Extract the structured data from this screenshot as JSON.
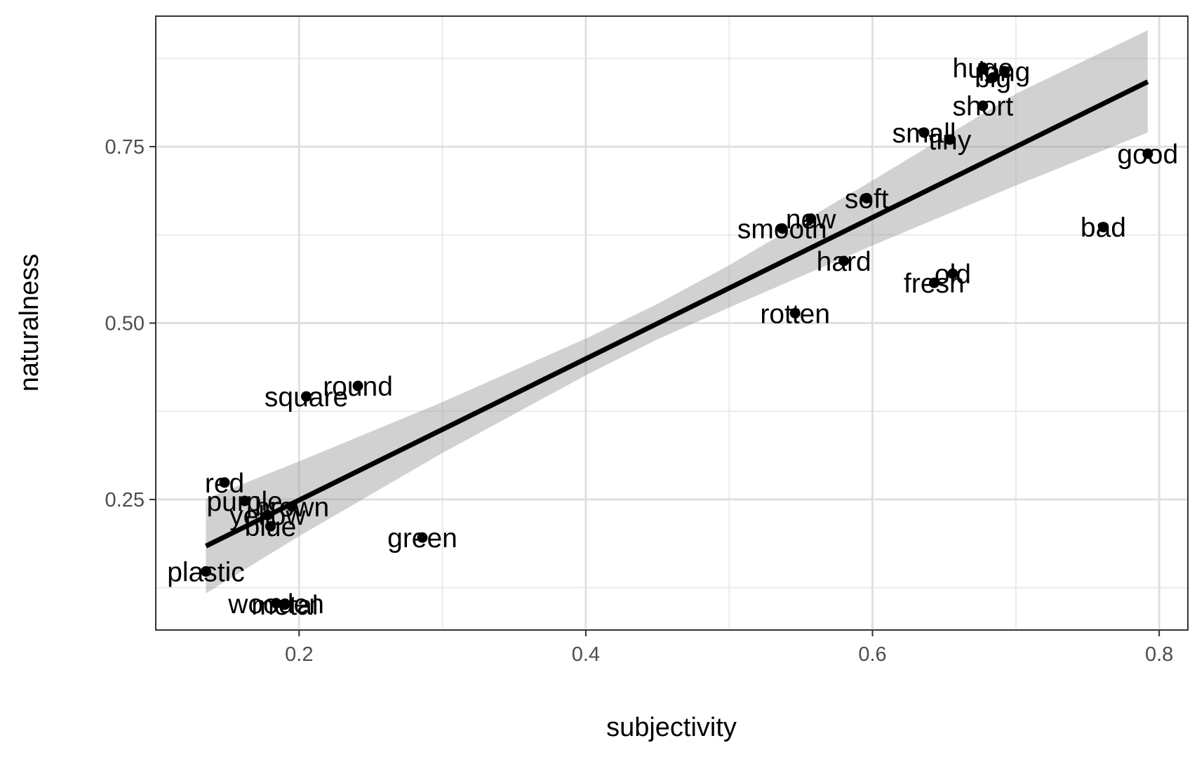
{
  "chart_data": {
    "type": "scatter",
    "title": "",
    "xlabel": "subjectivity",
    "ylabel": "naturalness",
    "xlim": [
      0.1,
      0.82
    ],
    "ylim": [
      0.065,
      0.935
    ],
    "x_ticks": [
      {
        "value": 0.2,
        "label": "0.2"
      },
      {
        "value": 0.4,
        "label": "0.4"
      },
      {
        "value": 0.6,
        "label": "0.6"
      },
      {
        "value": 0.8,
        "label": "0.8"
      }
    ],
    "y_ticks": [
      {
        "value": 0.25,
        "label": "0.25"
      },
      {
        "value": 0.5,
        "label": "0.50"
      },
      {
        "value": 0.75,
        "label": "0.75"
      }
    ],
    "grid": true,
    "points": [
      {
        "label": "huge",
        "x": 0.677,
        "y": 0.862
      },
      {
        "label": "long",
        "x": 0.692,
        "y": 0.857
      },
      {
        "label": "big",
        "x": 0.684,
        "y": 0.848
      },
      {
        "label": "short",
        "x": 0.677,
        "y": 0.808
      },
      {
        "label": "small",
        "x": 0.636,
        "y": 0.77
      },
      {
        "label": "tiny",
        "x": 0.654,
        "y": 0.76
      },
      {
        "label": "good",
        "x": 0.792,
        "y": 0.74
      },
      {
        "label": "soft",
        "x": 0.596,
        "y": 0.677
      },
      {
        "label": "new",
        "x": 0.557,
        "y": 0.648
      },
      {
        "label": "bad",
        "x": 0.761,
        "y": 0.636
      },
      {
        "label": "smooth",
        "x": 0.537,
        "y": 0.634
      },
      {
        "label": "hard",
        "x": 0.58,
        "y": 0.588
      },
      {
        "label": "old",
        "x": 0.656,
        "y": 0.57
      },
      {
        "label": "fresh",
        "x": 0.643,
        "y": 0.557
      },
      {
        "label": "rotten",
        "x": 0.546,
        "y": 0.514
      },
      {
        "label": "round",
        "x": 0.241,
        "y": 0.411
      },
      {
        "label": "square",
        "x": 0.205,
        "y": 0.396
      },
      {
        "label": "red",
        "x": 0.148,
        "y": 0.274
      },
      {
        "label": "purple",
        "x": 0.162,
        "y": 0.248
      },
      {
        "label": "brown",
        "x": 0.195,
        "y": 0.24
      },
      {
        "label": "yellow",
        "x": 0.178,
        "y": 0.228
      },
      {
        "label": "blue",
        "x": 0.18,
        "y": 0.212
      },
      {
        "label": "green",
        "x": 0.286,
        "y": 0.196
      },
      {
        "label": "plastic",
        "x": 0.135,
        "y": 0.148
      },
      {
        "label": "wooden",
        "x": 0.184,
        "y": 0.103
      },
      {
        "label": "metal",
        "x": 0.19,
        "y": 0.101
      }
    ],
    "fit": {
      "type": "linear",
      "x": [
        0.135,
        0.792
      ],
      "y": [
        0.184,
        0.842
      ],
      "band": [
        {
          "x": 0.135,
          "lower": 0.117,
          "upper": 0.251
        },
        {
          "x": 0.2,
          "lower": 0.198,
          "upper": 0.304
        },
        {
          "x": 0.3,
          "lower": 0.316,
          "upper": 0.388
        },
        {
          "x": 0.4,
          "lower": 0.426,
          "upper": 0.478
        },
        {
          "x": 0.45,
          "lower": 0.477,
          "upper": 0.527
        },
        {
          "x": 0.5,
          "lower": 0.522,
          "upper": 0.582
        },
        {
          "x": 0.6,
          "lower": 0.61,
          "upper": 0.702
        },
        {
          "x": 0.7,
          "lower": 0.695,
          "upper": 0.825
        },
        {
          "x": 0.792,
          "lower": 0.77,
          "upper": 0.915
        }
      ]
    }
  }
}
